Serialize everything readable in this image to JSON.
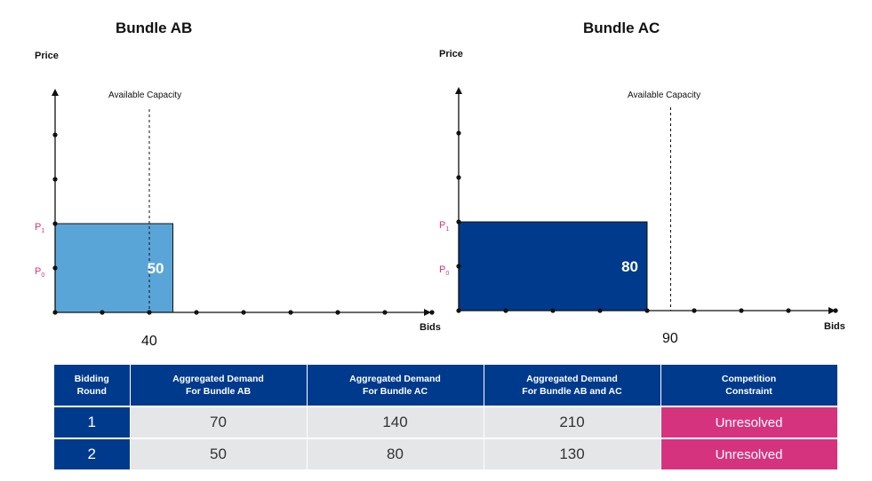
{
  "chart_data": [
    {
      "type": "bar",
      "title": "Bundle AB",
      "ylabel": "Price",
      "xlabel": "Bids",
      "y_tick_labels": [
        {
          "label": "P",
          "sub": "1",
          "level": 2
        },
        {
          "label": "P",
          "sub": "0",
          "level": 1
        }
      ],
      "xlim": [
        0,
        80
      ],
      "ylim": [
        0,
        5
      ],
      "bar": {
        "x_start": 0,
        "x_end": 25,
        "height_level": 2,
        "value_label": "50",
        "color": "#5aa5d8",
        "label_color": "#ffffff"
      },
      "capacity": {
        "label": "Available Capacity",
        "value": "40",
        "x": 20
      }
    },
    {
      "type": "bar",
      "title": "Bundle AC",
      "ylabel": "Price",
      "xlabel": "Bids",
      "y_tick_labels": [
        {
          "label": "P",
          "sub": "1",
          "level": 2
        },
        {
          "label": "P",
          "sub": "0",
          "level": 1
        }
      ],
      "xlim": [
        0,
        80
      ],
      "ylim": [
        0,
        5
      ],
      "bar": {
        "x_start": 0,
        "x_end": 40,
        "height_level": 2,
        "value_label": "80",
        "color": "#003a8c",
        "label_color": "#ffffff"
      },
      "capacity": {
        "label": "Available Capacity",
        "value": "90",
        "x": 45
      }
    }
  ],
  "table": {
    "headers": [
      [
        "Bidding",
        "Round"
      ],
      [
        "Aggregated Demand",
        "For Bundle AB"
      ],
      [
        "Aggregated Demand",
        "For Bundle AC"
      ],
      [
        "Aggregated Demand",
        "For Bundle AB and AC"
      ],
      [
        "Competition",
        "Constraint"
      ]
    ],
    "rows": [
      {
        "round": "1",
        "ab": "70",
        "ac": "140",
        "abac": "210",
        "status": "Unresolved"
      },
      {
        "round": "2",
        "ab": "50",
        "ac": "80",
        "abac": "130",
        "status": "Unresolved"
      }
    ]
  }
}
